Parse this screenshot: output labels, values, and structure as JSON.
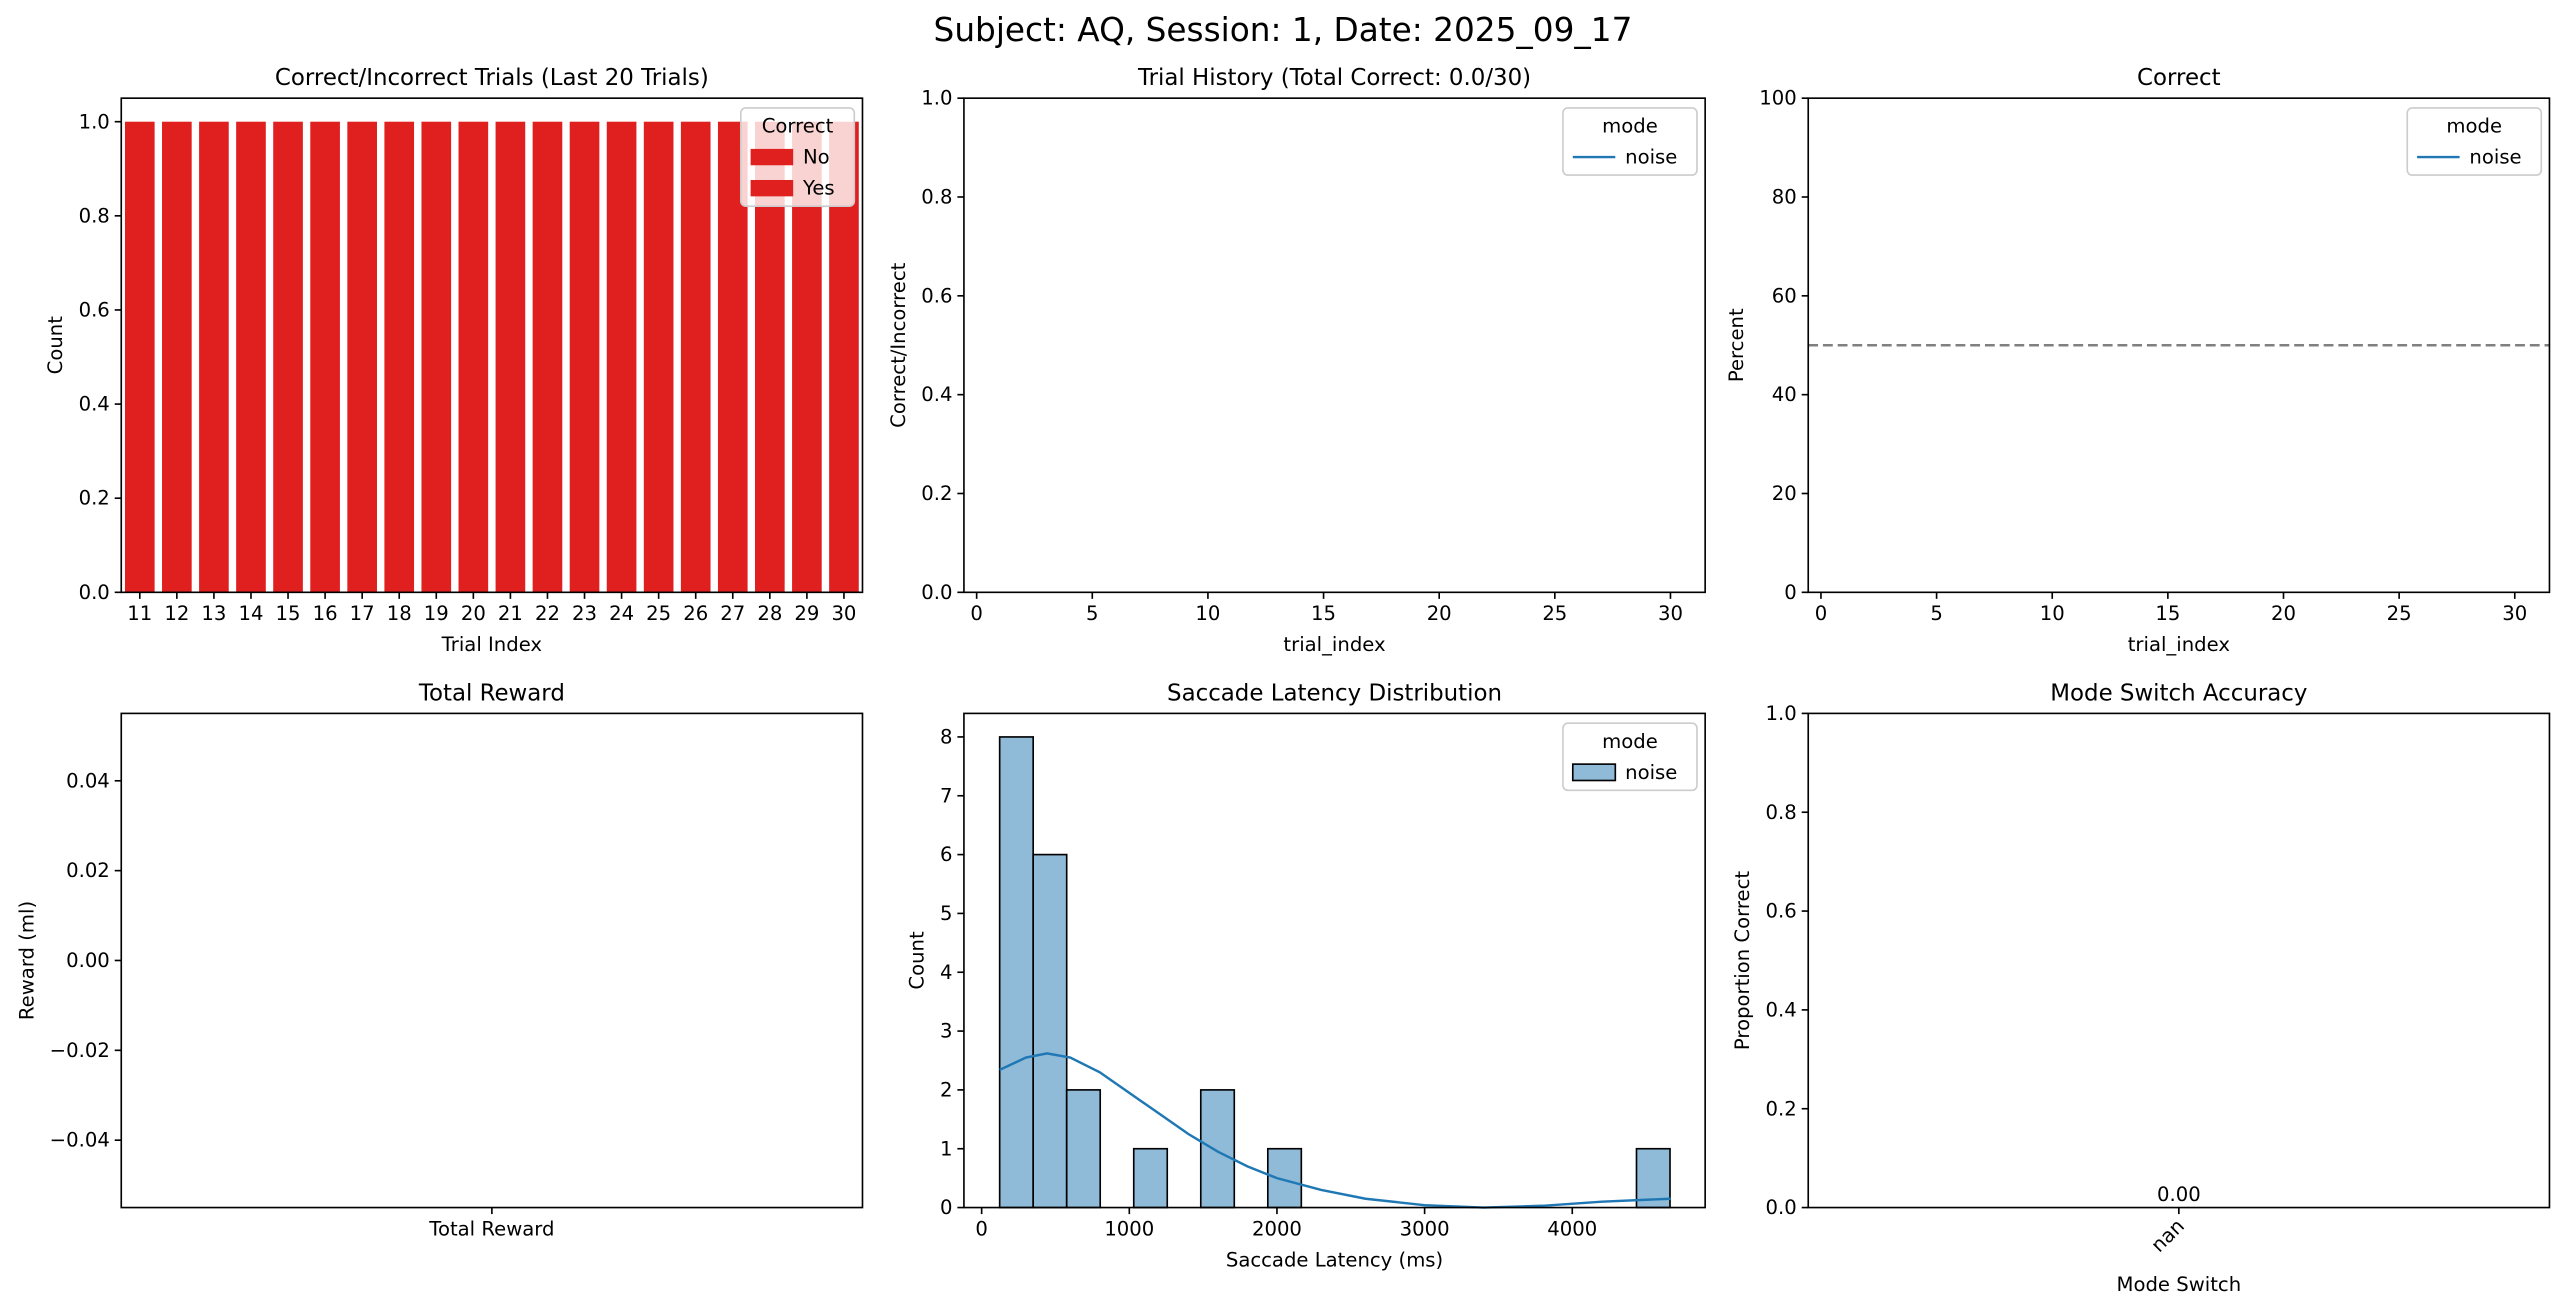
{
  "title": "Subject: AQ, Session: 1, Date: 2025_09_17",
  "chart_data": [
    {
      "type": "bar",
      "title": "Correct/Incorrect Trials (Last 20 Trials)",
      "xlabel": "Trial Index",
      "ylabel": "Count",
      "categories": [
        "11",
        "12",
        "13",
        "14",
        "15",
        "16",
        "17",
        "18",
        "19",
        "20",
        "21",
        "22",
        "23",
        "24",
        "25",
        "26",
        "27",
        "28",
        "29",
        "30"
      ],
      "values": [
        1,
        1,
        1,
        1,
        1,
        1,
        1,
        1,
        1,
        1,
        1,
        1,
        1,
        1,
        1,
        1,
        1,
        1,
        1,
        1
      ],
      "color": "#e01f1f",
      "ylim": [
        0,
        1.05
      ],
      "yticks": [
        {
          "value": 0,
          "label": "0.0"
        },
        {
          "value": 0.2,
          "label": "0.2"
        },
        {
          "value": 0.4,
          "label": "0.4"
        },
        {
          "value": 0.6,
          "label": "0.6"
        },
        {
          "value": 0.8,
          "label": "0.8"
        },
        {
          "value": 1,
          "label": "1.0"
        }
      ],
      "legend": {
        "title": "Correct",
        "loc": "upper right",
        "entries": [
          {
            "name": "No",
            "color": "#e01f1f"
          },
          {
            "name": "Yes",
            "color": "#e01f1f"
          }
        ]
      }
    },
    {
      "type": "line",
      "title": "Trial History (Total Correct: 0.0/30)",
      "xlabel": "trial_index",
      "ylabel": "Correct/Incorrect",
      "series": [
        {
          "name": "noise",
          "color": "#1f77b4",
          "x": [],
          "values": []
        }
      ],
      "xlim": [
        -0.55,
        31.5
      ],
      "xticks": [
        0,
        5,
        10,
        15,
        20,
        25,
        30
      ],
      "ylim": [
        0,
        1
      ],
      "yticks": [
        {
          "value": 0,
          "label": "0.0"
        },
        {
          "value": 0.2,
          "label": "0.2"
        },
        {
          "value": 0.4,
          "label": "0.4"
        },
        {
          "value": 0.6,
          "label": "0.6"
        },
        {
          "value": 0.8,
          "label": "0.8"
        },
        {
          "value": 1,
          "label": "1.0"
        }
      ],
      "legend": {
        "title": "mode",
        "loc": "upper right"
      }
    },
    {
      "type": "line",
      "title": "Correct",
      "xlabel": "trial_index",
      "ylabel": "Percent",
      "series": [
        {
          "name": "noise",
          "color": "#1f77b4",
          "x": [],
          "values": []
        }
      ],
      "xlim": [
        -0.55,
        31.5
      ],
      "xticks": [
        0,
        5,
        10,
        15,
        20,
        25,
        30
      ],
      "ylim": [
        0,
        100
      ],
      "yticks": [
        0,
        20,
        40,
        60,
        80,
        100
      ],
      "hline": 50,
      "legend": {
        "title": "mode",
        "loc": "upper right"
      }
    },
    {
      "type": "bar",
      "title": "Total Reward",
      "ylabel": "Reward (ml)",
      "categories": [
        "Total Reward"
      ],
      "values": [
        null
      ],
      "color": "#1f77b4",
      "ylim": [
        -0.055,
        0.055
      ],
      "yticks": [
        {
          "value": -0.04,
          "label": "−0.04"
        },
        {
          "value": -0.02,
          "label": "−0.02"
        },
        {
          "value": 0,
          "label": "0.00"
        },
        {
          "value": 0.02,
          "label": "0.02"
        },
        {
          "value": 0.04,
          "label": "0.04"
        }
      ]
    },
    {
      "type": "histogram",
      "title": "Saccade Latency Distribution",
      "xlabel": "Saccade Latency (ms)",
      "ylabel": "Count",
      "bins": [
        122,
        349,
        576,
        803,
        1030,
        1257,
        1484,
        1711,
        1938,
        2165,
        2392,
        2619,
        2846,
        3073,
        3300,
        3527,
        3754,
        3981,
        4208,
        4435,
        4662
      ],
      "values": [
        8,
        6,
        2,
        0,
        1,
        0,
        2,
        0,
        1,
        0,
        0,
        0,
        0,
        0,
        0,
        0,
        0,
        0,
        0,
        1
      ],
      "series": [
        {
          "name": "noise",
          "color": "#1f77b4"
        }
      ],
      "kde": {
        "x": [
          122,
          300,
          443,
          600,
          800,
          1000,
          1200,
          1400,
          1600,
          1800,
          2000,
          2300,
          2600,
          3000,
          3400,
          3800,
          4200,
          4665
        ],
        "y": [
          2.34,
          2.55,
          2.62,
          2.55,
          2.3,
          1.95,
          1.6,
          1.25,
          0.95,
          0.7,
          0.5,
          0.3,
          0.15,
          0.04,
          0.0,
          0.03,
          0.1,
          0.15
        ]
      },
      "xlim": [
        -120,
        4900
      ],
      "xticks": [
        0,
        1000,
        2000,
        3000,
        4000
      ],
      "ylim": [
        0,
        8.4
      ],
      "yticks": [
        0,
        1,
        2,
        3,
        4,
        5,
        6,
        7,
        8
      ],
      "legend": {
        "title": "mode",
        "loc": "upper right"
      }
    },
    {
      "type": "bar",
      "title": "Mode Switch Accuracy",
      "xlabel": "Mode Switch",
      "ylabel": "Proportion Correct",
      "categories": [
        "nan"
      ],
      "values": [
        0
      ],
      "value_labels": [
        "0.00"
      ],
      "color": "#1f77b4",
      "xtick_rotation": 45,
      "ylim": [
        0,
        1
      ],
      "yticks": [
        {
          "value": 0,
          "label": "0.0"
        },
        {
          "value": 0.2,
          "label": "0.2"
        },
        {
          "value": 0.4,
          "label": "0.4"
        },
        {
          "value": 0.6,
          "label": "0.6"
        },
        {
          "value": 0.8,
          "label": "0.8"
        },
        {
          "value": 1,
          "label": "1.0"
        }
      ]
    }
  ]
}
